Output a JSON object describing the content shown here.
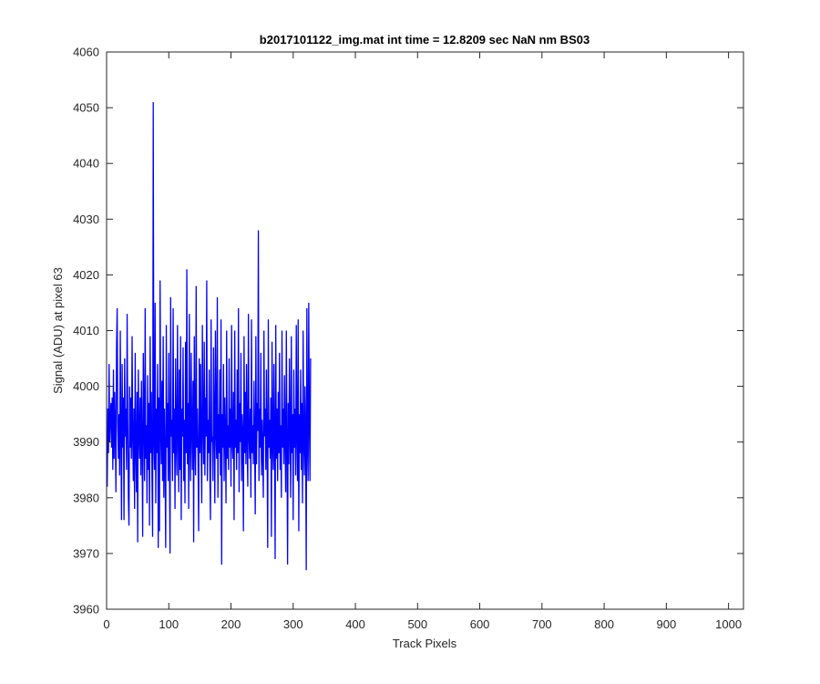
{
  "chart_data": {
    "type": "line",
    "title": "b2017101122_img.mat int time = 12.8209 sec  NaN nm BS03",
    "xlabel": "Track Pixels",
    "ylabel": "Signal (ADU) at pixel 63",
    "xlim": [
      0,
      1024
    ],
    "ylim": [
      3960,
      4060
    ],
    "x_ticks": [
      0,
      100,
      200,
      300,
      400,
      500,
      600,
      700,
      800,
      900,
      1000
    ],
    "y_ticks": [
      3960,
      3970,
      3980,
      3990,
      4000,
      4010,
      4020,
      4030,
      4040,
      4050,
      4060
    ],
    "grid": false,
    "line_color": "#0000ff",
    "series": [
      {
        "x_start": 1,
        "x_step": 1,
        "values": [
          3982,
          3996,
          3988,
          4004,
          3990,
          3994,
          3997,
          3989,
          3998,
          3985,
          4003,
          3987,
          3999,
          3992,
          3981,
          4007,
          4014,
          3993,
          3987,
          3995,
          3984,
          4010,
          3992,
          3976,
          4004,
          3989,
          3998,
          3976,
          4005,
          3991,
          3996,
          3985,
          4013,
          3994,
          3980,
          3975,
          4000,
          3989,
          3998,
          3987,
          4009,
          3991,
          3983,
          3996,
          3978,
          4006,
          3989,
          3981,
          3999,
          3972,
          4003,
          3992,
          3987,
          3998,
          3984,
          4001,
          3990,
          3973,
          4006,
          3995,
          3983,
          4014,
          3987,
          3993,
          3979,
          4002,
          3985,
          3997,
          3975,
          4009,
          3988,
          3999,
          3983,
          3973,
          4051,
          3990,
          3985,
          4015,
          3979,
          3996,
          3988,
          4004,
          3971,
          3998,
          3974,
          4019,
          3992,
          3986,
          4001,
          3983,
          4009,
          3980,
          3996,
          3987,
          3971,
          4011,
          3989,
          3997,
          3983,
          4006,
          3988,
          3970,
          4016,
          3991,
          3994,
          3983,
          4014,
          3988,
          3996,
          3978,
          4005,
          3990,
          3984,
          4011,
          3992,
          3981,
          4003,
          3985,
          4009,
          3976,
          3996,
          3991,
          4007,
          3983,
          3994,
          3979,
          4008,
          3988,
          4021,
          3986,
          3997,
          3978,
          4013,
          3990,
          3983,
          4006,
          3992,
          3985,
          4001,
          3972,
          4009,
          3990,
          3984,
          4018,
          3989,
          3996,
          3987,
          3974,
          4005,
          3988,
          4004,
          3990,
          3979,
          4011,
          3993,
          3986,
          4008,
          3984,
          3998,
          3991,
          4019,
          3983,
          3994,
          3988,
          4003,
          3985,
          3976,
          4012,
          3990,
          3991,
          3983,
          4007,
          3994,
          3979,
          4010,
          3992,
          3987,
          4016,
          3980,
          3995,
          3988,
          4003,
          3984,
          4012,
          3968,
          3995,
          3989,
          4004,
          3983,
          3998,
          3991,
          3979,
          4010,
          3987,
          3993,
          3985,
          4005,
          3989,
          3996,
          3982,
          4011,
          3990,
          3987,
          3999,
          3976,
          4010,
          3989,
          3994,
          3985,
          4003,
          3988,
          4014,
          3981,
          3997,
          3990,
          4006,
          3983,
          3995,
          3991,
          3974,
          4009,
          3988,
          3999,
          3986,
          4004,
          3990,
          3982,
          4013,
          3991,
          3987,
          3996,
          3980,
          4012,
          3988,
          3993,
          3986,
          4001,
          3990,
          3977,
          4009,
          3986,
          3997,
          3992,
          4028,
          3983,
          3996,
          3989,
          4006,
          3984,
          3994,
          3988,
          3980,
          4010,
          3991,
          3996,
          3985,
          4003,
          3990,
          3971,
          4012,
          3989,
          3994,
          3987,
          3998,
          3973,
          4008,
          3990,
          3985,
          4004,
          3991,
          3969,
          4011,
          3987,
          3996,
          3983,
          3999,
          3988,
          4006,
          3985,
          3993,
          3980,
          4010,
          3989,
          3996,
          3986,
          4002,
          3990,
          3981,
          4010,
          3990,
          3968,
          3997,
          3986,
          4005,
          3992,
          3980,
          4009,
          3988,
          3995,
          3976,
          4003,
          3989,
          3996,
          3984,
          4011,
          3991,
          3983,
          4012,
          3974,
          3995,
          3988,
          4003,
          3985,
          3997,
          3979,
          4010,
          3990,
          3984,
          4000,
          3992,
          3967,
          4014,
          3990,
          3983,
          4015,
          3994,
          3983,
          4005
        ]
      }
    ]
  }
}
